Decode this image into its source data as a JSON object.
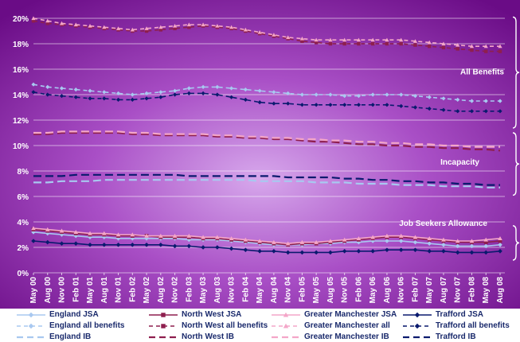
{
  "chart_data": {
    "type": "line",
    "title": "",
    "xlabel": "",
    "ylabel": "",
    "ylim": [
      0,
      20
    ],
    "y_ticks": [
      "0%",
      "2%",
      "4%",
      "6%",
      "8%",
      "10%",
      "12%",
      "14%",
      "16%",
      "18%",
      "20%"
    ],
    "grid": "horizontal",
    "legend_position": "bottom",
    "categories": [
      "May 00",
      "Aug 00",
      "Nov 00",
      "Feb 01",
      "May 01",
      "Aug 01",
      "Nov 01",
      "Feb 02",
      "May 02",
      "Aug 02",
      "Nov 02",
      "Feb 03",
      "May 03",
      "Aug 03",
      "Nov 03",
      "Feb 04",
      "May 04",
      "Aug 04",
      "Nov 04",
      "Feb 05",
      "May 05",
      "Aug 05",
      "Nov 05",
      "Feb 06",
      "May 06",
      "Aug 06",
      "Nov 06",
      "Feb 07",
      "May 07",
      "Aug 07",
      "Nov 07",
      "Feb 08",
      "May 08",
      "Aug 08"
    ],
    "annotations": [
      {
        "text": "All Benefits",
        "group": "all"
      },
      {
        "text": "Incapacity",
        "group": "ib"
      },
      {
        "text": "Job Seekers Allowance",
        "group": "jsa"
      }
    ],
    "series": [
      {
        "name": "England JSA",
        "color": "#a8c8f0",
        "style": "solid",
        "marker": "diamond",
        "group": "jsa",
        "values": [
          3.2,
          3.1,
          3.0,
          2.9,
          2.8,
          2.8,
          2.7,
          2.7,
          2.7,
          2.7,
          2.7,
          2.6,
          2.6,
          2.6,
          2.5,
          2.4,
          2.3,
          2.2,
          2.2,
          2.2,
          2.3,
          2.3,
          2.4,
          2.4,
          2.5,
          2.5,
          2.5,
          2.4,
          2.3,
          2.2,
          2.1,
          2.1,
          2.1,
          2.2
        ]
      },
      {
        "name": "North West JSA",
        "color": "#8e1f4e",
        "style": "solid",
        "marker": "square",
        "group": "jsa",
        "values": [
          3.4,
          3.3,
          3.2,
          3.1,
          3.0,
          3.0,
          2.9,
          2.9,
          2.9,
          2.8,
          2.8,
          2.8,
          2.7,
          2.7,
          2.6,
          2.5,
          2.4,
          2.3,
          2.2,
          2.3,
          2.3,
          2.4,
          2.5,
          2.6,
          2.7,
          2.8,
          2.8,
          2.7,
          2.6,
          2.5,
          2.4,
          2.4,
          2.4,
          2.5
        ]
      },
      {
        "name": "Greater Manchester JSA",
        "color": "#f4a6c8",
        "style": "solid",
        "marker": "triangle",
        "group": "jsa",
        "values": [
          3.5,
          3.4,
          3.3,
          3.2,
          3.1,
          3.1,
          3.0,
          3.0,
          2.9,
          2.9,
          2.9,
          2.9,
          2.8,
          2.8,
          2.7,
          2.6,
          2.5,
          2.4,
          2.3,
          2.4,
          2.4,
          2.5,
          2.6,
          2.7,
          2.8,
          2.9,
          2.9,
          2.8,
          2.7,
          2.6,
          2.5,
          2.5,
          2.6,
          2.7
        ]
      },
      {
        "name": "Trafford JSA",
        "color": "#0a1a6e",
        "style": "solid",
        "marker": "diamond",
        "group": "jsa",
        "values": [
          2.5,
          2.4,
          2.3,
          2.3,
          2.2,
          2.2,
          2.2,
          2.2,
          2.2,
          2.2,
          2.1,
          2.1,
          2.0,
          2.0,
          1.9,
          1.8,
          1.7,
          1.7,
          1.6,
          1.6,
          1.6,
          1.6,
          1.7,
          1.7,
          1.7,
          1.8,
          1.8,
          1.8,
          1.7,
          1.7,
          1.6,
          1.6,
          1.6,
          1.7
        ]
      },
      {
        "name": "England all benefits",
        "color": "#a8c8f0",
        "style": "dash",
        "marker": "diamond",
        "group": "all",
        "values": [
          14.8,
          14.6,
          14.5,
          14.4,
          14.3,
          14.2,
          14.1,
          14.0,
          14.1,
          14.2,
          14.3,
          14.5,
          14.6,
          14.6,
          14.5,
          14.4,
          14.3,
          14.2,
          14.1,
          14.0,
          14.0,
          14.0,
          13.9,
          13.9,
          14.0,
          14.0,
          14.0,
          13.9,
          13.8,
          13.7,
          13.6,
          13.5,
          13.5,
          13.5
        ]
      },
      {
        "name": "North West all benefits",
        "color": "#8e1f4e",
        "style": "dash",
        "marker": "square",
        "group": "all",
        "values": [
          19.8,
          19.6,
          19.5,
          19.4,
          19.3,
          19.2,
          19.1,
          19.0,
          19.0,
          19.1,
          19.2,
          19.3,
          19.4,
          19.3,
          19.2,
          19.0,
          18.8,
          18.6,
          18.4,
          18.2,
          18.1,
          18.0,
          18.0,
          18.0,
          18.0,
          18.0,
          18.0,
          17.9,
          17.8,
          17.7,
          17.6,
          17.5,
          17.4,
          17.4
        ]
      },
      {
        "name": "Greater Manchester all",
        "color": "#f4a6c8",
        "style": "dash",
        "marker": "triangle",
        "group": "all",
        "values": [
          20.0,
          19.8,
          19.6,
          19.5,
          19.4,
          19.3,
          19.2,
          19.1,
          19.2,
          19.3,
          19.4,
          19.5,
          19.5,
          19.4,
          19.3,
          19.1,
          18.9,
          18.7,
          18.5,
          18.4,
          18.3,
          18.3,
          18.3,
          18.3,
          18.3,
          18.3,
          18.3,
          18.2,
          18.1,
          18.0,
          17.9,
          17.8,
          17.8,
          17.8
        ]
      },
      {
        "name": "Trafford all benefits",
        "color": "#0a1a6e",
        "style": "dash",
        "marker": "diamond",
        "group": "all",
        "values": [
          14.2,
          14.0,
          13.9,
          13.8,
          13.7,
          13.7,
          13.6,
          13.6,
          13.7,
          13.8,
          14.0,
          14.1,
          14.1,
          14.0,
          13.8,
          13.6,
          13.4,
          13.3,
          13.3,
          13.2,
          13.2,
          13.2,
          13.2,
          13.2,
          13.2,
          13.2,
          13.1,
          13.0,
          12.9,
          12.8,
          12.7,
          12.7,
          12.7,
          12.7
        ]
      },
      {
        "name": "England IB",
        "color": "#a8c8f0",
        "style": "longdash",
        "marker": "none",
        "group": "ib",
        "values": [
          7.1,
          7.1,
          7.2,
          7.2,
          7.2,
          7.3,
          7.3,
          7.3,
          7.3,
          7.3,
          7.3,
          7.3,
          7.3,
          7.3,
          7.3,
          7.3,
          7.2,
          7.2,
          7.2,
          7.2,
          7.1,
          7.1,
          7.1,
          7.0,
          7.0,
          7.0,
          6.9,
          6.9,
          6.9,
          6.8,
          6.8,
          6.8,
          6.7,
          6.7
        ]
      },
      {
        "name": "North West IB",
        "color": "#8e1f4e",
        "style": "longdash",
        "marker": "none",
        "group": "ib",
        "values": [
          10.9,
          10.9,
          11.0,
          11.0,
          11.0,
          11.0,
          11.0,
          10.9,
          10.9,
          10.8,
          10.8,
          10.8,
          10.8,
          10.7,
          10.7,
          10.6,
          10.6,
          10.5,
          10.5,
          10.4,
          10.3,
          10.3,
          10.2,
          10.1,
          10.1,
          10.0,
          10.0,
          9.9,
          9.9,
          9.8,
          9.8,
          9.7,
          9.7,
          9.6
        ]
      },
      {
        "name": "Greater Manchester IB",
        "color": "#f4a6c8",
        "style": "longdash",
        "marker": "none",
        "group": "ib",
        "values": [
          11.0,
          11.0,
          11.1,
          11.1,
          11.1,
          11.1,
          11.1,
          11.0,
          11.0,
          10.9,
          10.9,
          10.9,
          10.9,
          10.8,
          10.8,
          10.7,
          10.7,
          10.6,
          10.6,
          10.5,
          10.5,
          10.4,
          10.4,
          10.3,
          10.3,
          10.2,
          10.2,
          10.1,
          10.1,
          10.0,
          10.0,
          9.9,
          9.9,
          9.9
        ]
      },
      {
        "name": "Trafford IB",
        "color": "#0a1a6e",
        "style": "longdash",
        "marker": "none",
        "group": "ib",
        "values": [
          7.6,
          7.6,
          7.6,
          7.7,
          7.7,
          7.7,
          7.7,
          7.7,
          7.7,
          7.7,
          7.7,
          7.6,
          7.6,
          7.6,
          7.6,
          7.6,
          7.6,
          7.6,
          7.5,
          7.5,
          7.5,
          7.5,
          7.4,
          7.4,
          7.3,
          7.3,
          7.2,
          7.2,
          7.1,
          7.1,
          7.0,
          7.0,
          6.9,
          6.9
        ]
      }
    ]
  }
}
